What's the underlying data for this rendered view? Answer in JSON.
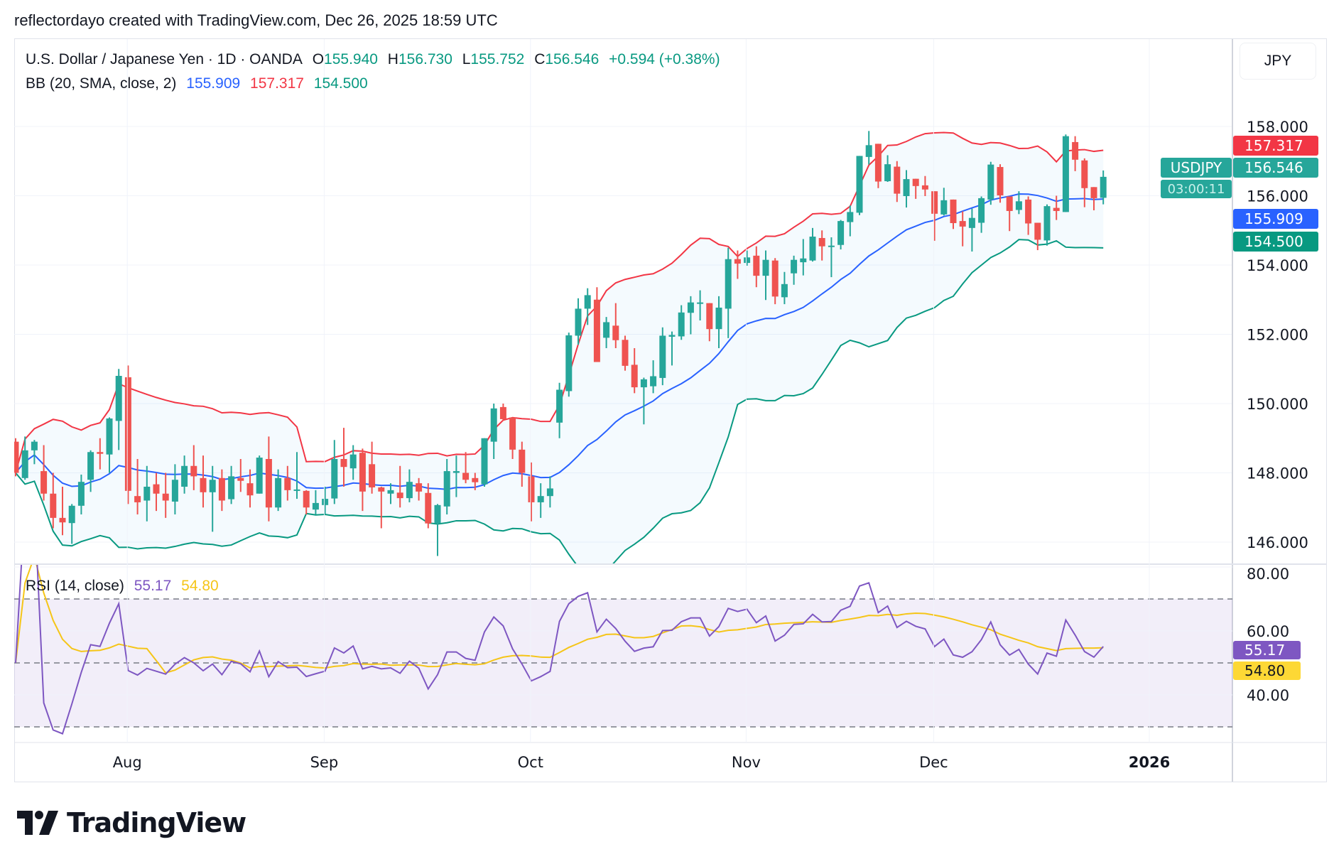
{
  "credit": "reflectordayo created with TradingView.com, Dec 26, 2025 18:59 UTC",
  "legend": {
    "symbol": "U.S. Dollar / Japanese Yen · 1D · OANDA",
    "open_label": "O",
    "open": "155.940",
    "high_label": "H",
    "high": "156.730",
    "low_label": "L",
    "low": "155.752",
    "close_label": "C",
    "close": "156.546",
    "change": "+0.594 (+0.38%)",
    "bb_title": "BB (20, SMA, close, 2)",
    "bb_basis": "155.909",
    "bb_upper": "157.317",
    "bb_lower": "154.500",
    "rsi_title": "RSI (14, close)",
    "rsi_value": "55.17",
    "rsi_ma": "54.80"
  },
  "currency_button": "JPY",
  "tags": {
    "symbol": "USDJPY",
    "upper": "157.317",
    "close": "156.546",
    "countdown": "03:00:11",
    "basis": "155.909",
    "lower": "154.500",
    "rsi": "55.17",
    "rsi_ma": "54.80"
  },
  "colors": {
    "up": "#26a69a",
    "down": "#ef5350",
    "bb_basis": "#2962ff",
    "bb_upper": "#f23645",
    "bb_lower": "#089981",
    "rsi": "#7e57c2",
    "rsi_ma": "#f5c518"
  },
  "logo": "TradingView",
  "chart_data": [
    {
      "type": "candlestick",
      "last_bar_date": "2025-12-26",
      "ohlc_fields": [
        "open",
        "high",
        "low",
        "close"
      ],
      "ohlc": [
        [
          148.9,
          149.0,
          147.9,
          148.0
        ],
        [
          147.85,
          149.05,
          147.8,
          148.65
        ],
        [
          148.65,
          148.95,
          148.25,
          148.9
        ],
        [
          148.05,
          148.8,
          147.2,
          147.4
        ],
        [
          147.4,
          148.0,
          146.4,
          146.7
        ],
        [
          146.7,
          147.6,
          146.2,
          146.57
        ],
        [
          146.55,
          147.1,
          145.95,
          147.05
        ],
        [
          147.05,
          147.95,
          146.8,
          147.74
        ],
        [
          147.8,
          148.65,
          147.45,
          148.6
        ],
        [
          148.6,
          149.0,
          148.1,
          148.55
        ],
        [
          148.53,
          149.6,
          148.0,
          149.57
        ],
        [
          149.5,
          151.0,
          148.66,
          150.8
        ],
        [
          150.76,
          151.1,
          147.1,
          147.48
        ],
        [
          147.33,
          148.4,
          146.8,
          147.15
        ],
        [
          147.2,
          148.2,
          146.6,
          147.6
        ],
        [
          147.67,
          148.0,
          146.9,
          147.4
        ],
        [
          147.4,
          148.0,
          146.7,
          147.2
        ],
        [
          147.17,
          148.25,
          146.8,
          147.8
        ],
        [
          147.6,
          148.5,
          147.4,
          148.2
        ],
        [
          148.2,
          148.8,
          147.5,
          147.9
        ],
        [
          147.85,
          148.5,
          147.0,
          147.44
        ],
        [
          147.44,
          148.2,
          146.3,
          147.8
        ],
        [
          147.85,
          148.1,
          146.9,
          147.2
        ],
        [
          147.24,
          148.2,
          147.1,
          147.9
        ],
        [
          147.85,
          148.4,
          147.45,
          147.77
        ],
        [
          147.7,
          148.1,
          147.0,
          147.35
        ],
        [
          147.4,
          148.5,
          147.4,
          148.44
        ],
        [
          148.4,
          149.05,
          146.6,
          147.0
        ],
        [
          147.0,
          148.1,
          146.9,
          147.85
        ],
        [
          147.85,
          148.2,
          147.2,
          147.5
        ],
        [
          147.48,
          148.6,
          147.25,
          147.52
        ],
        [
          147.48,
          147.5,
          146.8,
          147.0
        ],
        [
          146.94,
          147.5,
          146.8,
          147.13
        ],
        [
          147.07,
          147.6,
          146.8,
          147.25
        ],
        [
          147.26,
          148.95,
          147.1,
          148.4
        ],
        [
          148.4,
          149.3,
          147.6,
          148.17
        ],
        [
          148.13,
          148.8,
          147.8,
          148.53
        ],
        [
          148.58,
          148.7,
          146.9,
          147.46
        ],
        [
          148.25,
          148.9,
          147.4,
          147.58
        ],
        [
          147.58,
          147.6,
          146.4,
          147.46
        ],
        [
          147.4,
          147.7,
          147.1,
          147.5
        ],
        [
          147.43,
          148.2,
          147.0,
          147.27
        ],
        [
          147.27,
          148.1,
          147.15,
          147.74
        ],
        [
          147.7,
          147.85,
          147.2,
          147.46
        ],
        [
          147.42,
          147.7,
          146.4,
          146.54
        ],
        [
          146.54,
          147.1,
          145.6,
          147.07
        ],
        [
          147.03,
          148.4,
          146.8,
          148.05
        ],
        [
          148.0,
          148.5,
          147.3,
          148.05
        ],
        [
          148.0,
          148.6,
          147.7,
          147.8
        ],
        [
          147.85,
          148.0,
          147.5,
          147.73
        ],
        [
          147.67,
          149.0,
          147.6,
          149.0
        ],
        [
          148.9,
          150.0,
          148.4,
          149.86
        ],
        [
          149.9,
          150.0,
          149.5,
          149.55
        ],
        [
          149.6,
          149.6,
          148.4,
          148.67
        ],
        [
          148.67,
          148.9,
          147.6,
          148.0
        ],
        [
          147.9,
          148.3,
          146.6,
          147.15
        ],
        [
          147.15,
          147.7,
          146.7,
          147.33
        ],
        [
          147.33,
          147.9,
          147.0,
          147.55
        ],
        [
          149.45,
          150.6,
          149.0,
          150.4
        ],
        [
          150.36,
          152.05,
          150.2,
          151.97
        ],
        [
          151.96,
          153.04,
          151.7,
          152.74
        ],
        [
          152.74,
          153.33,
          152.27,
          153.13
        ],
        [
          153.0,
          153.36,
          151.2,
          151.2
        ],
        [
          151.9,
          152.5,
          151.6,
          152.35
        ],
        [
          152.25,
          152.9,
          151.6,
          151.83
        ],
        [
          151.84,
          151.96,
          150.95,
          151.09
        ],
        [
          151.12,
          151.6,
          150.3,
          150.47
        ],
        [
          150.47,
          150.75,
          149.4,
          150.7
        ],
        [
          150.5,
          151.25,
          150.3,
          150.79
        ],
        [
          150.74,
          152.2,
          150.53,
          151.96
        ],
        [
          151.93,
          152.08,
          151.1,
          151.98
        ],
        [
          151.94,
          152.84,
          151.84,
          152.63
        ],
        [
          152.62,
          153.1,
          152.0,
          152.92
        ],
        [
          152.9,
          153.27,
          152.4,
          152.92
        ],
        [
          152.9,
          152.9,
          151.8,
          152.15
        ],
        [
          152.15,
          153.1,
          151.6,
          152.77
        ],
        [
          152.74,
          154.5,
          151.89,
          154.17
        ],
        [
          154.17,
          154.42,
          153.6,
          154.04
        ],
        [
          154.06,
          154.42,
          153.98,
          154.22
        ],
        [
          154.27,
          154.54,
          153.36,
          153.69
        ],
        [
          153.69,
          154.42,
          152.99,
          154.15
        ],
        [
          154.13,
          154.2,
          152.87,
          153.09
        ],
        [
          153.07,
          153.8,
          152.87,
          153.45
        ],
        [
          153.76,
          154.27,
          153.43,
          154.15
        ],
        [
          154.08,
          154.75,
          153.7,
          154.19
        ],
        [
          154.13,
          155.07,
          154.1,
          154.82
        ],
        [
          154.78,
          155.0,
          154.13,
          154.54
        ],
        [
          154.52,
          154.8,
          153.65,
          154.56
        ],
        [
          154.58,
          155.3,
          154.45,
          155.27
        ],
        [
          155.24,
          155.72,
          154.83,
          155.53
        ],
        [
          155.51,
          157.15,
          155.44,
          157.15
        ],
        [
          157.12,
          157.87,
          156.9,
          157.46
        ],
        [
          157.5,
          157.5,
          156.22,
          156.41
        ],
        [
          156.42,
          157.17,
          156.4,
          156.91
        ],
        [
          156.84,
          157.0,
          155.82,
          156.06
        ],
        [
          155.99,
          156.74,
          155.66,
          156.48
        ],
        [
          156.49,
          156.49,
          155.91,
          156.28
        ],
        [
          156.3,
          156.57,
          155.99,
          156.18
        ],
        [
          156.13,
          156.13,
          154.7,
          155.48
        ],
        [
          155.46,
          156.23,
          155.43,
          155.87
        ],
        [
          155.89,
          155.89,
          155.04,
          155.21
        ],
        [
          155.27,
          155.55,
          154.54,
          155.11
        ],
        [
          155.07,
          155.63,
          154.39,
          155.36
        ],
        [
          155.22,
          155.98,
          154.93,
          155.93
        ],
        [
          155.89,
          156.98,
          155.74,
          156.9
        ],
        [
          156.83,
          156.91,
          155.8,
          156.01
        ],
        [
          155.98,
          155.98,
          154.98,
          155.56
        ],
        [
          155.59,
          156.13,
          155.47,
          155.84
        ],
        [
          155.89,
          155.98,
          154.87,
          155.2
        ],
        [
          155.22,
          155.22,
          154.43,
          154.73
        ],
        [
          154.71,
          155.75,
          154.56,
          155.7
        ],
        [
          155.65,
          156.0,
          155.3,
          155.56
        ],
        [
          155.53,
          157.77,
          155.53,
          157.72
        ],
        [
          157.55,
          157.72,
          156.71,
          157.04
        ],
        [
          157.02,
          157.08,
          155.67,
          156.22
        ],
        [
          156.25,
          156.25,
          155.58,
          155.93
        ],
        [
          155.94,
          156.73,
          155.752,
          156.546
        ]
      ],
      "indicators": [
        "BB (20, SMA, close, 2)"
      ],
      "y_ticks": [
        "158.000",
        "156.000",
        "154.000",
        "152.000",
        "150.000",
        "148.000",
        "146.000"
      ],
      "y_range": [
        145.8,
        160.5
      ],
      "x_ticks": [
        {
          "label": "Aug",
          "date": "2025-08-01"
        },
        {
          "label": "Sep",
          "date": "2025-09-01"
        },
        {
          "label": "Oct",
          "date": "2025-10-01"
        },
        {
          "label": "Nov",
          "date": "2025-11-03"
        },
        {
          "label": "Dec",
          "date": "2025-12-01"
        },
        {
          "label": "2026",
          "date": "2026-01-01"
        }
      ],
      "grid": true
    },
    {
      "type": "line",
      "indicator": "RSI (14, close)",
      "y_ticks": [
        "80.00",
        "60.00",
        "40.00"
      ],
      "y_range": [
        19,
        81
      ],
      "bands": [
        70,
        50,
        30
      ]
    }
  ]
}
